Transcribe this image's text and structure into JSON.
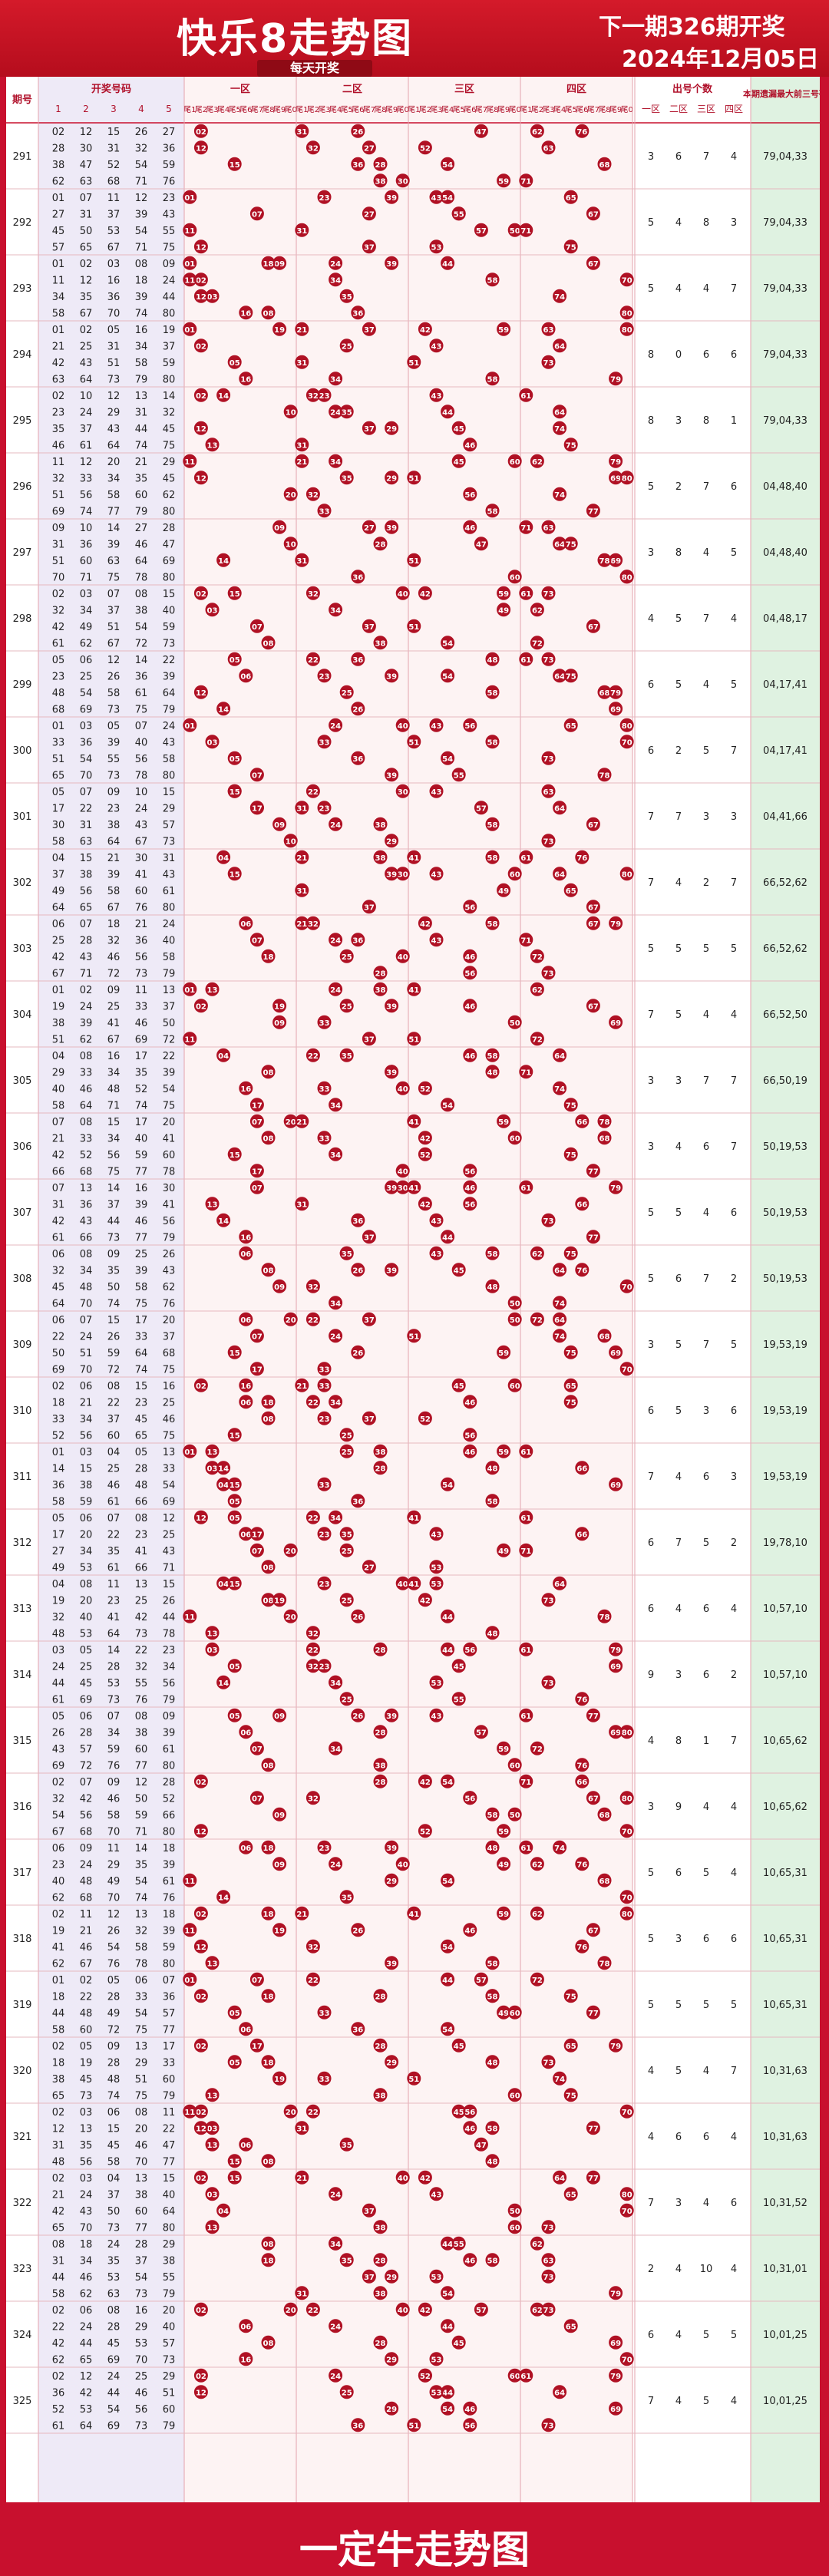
{
  "header": {
    "title": "快乐8走势图",
    "subtitle": "每天开奖",
    "next_draw": "下一期326期开奖",
    "next_date": "2024年12月05日"
  },
  "footer": {
    "text": "一定牛走势图"
  },
  "table": {
    "col_issue": "期号",
    "col_winning": "开奖号码",
    "winning_cols": [
      "1",
      "2",
      "3",
      "4",
      "5"
    ],
    "zones": [
      "一区",
      "二区",
      "三区",
      "四区"
    ],
    "tails": [
      "尾1",
      "尾2",
      "尾3",
      "尾4",
      "尾5",
      "尾6",
      "尾7",
      "尾8",
      "尾9",
      "尾0"
    ],
    "col_count": "出号个数",
    "count_zones": [
      "一区",
      "二区",
      "三区",
      "四区"
    ],
    "col_missing": "本期遗漏最大前三号码"
  },
  "chart_data": {
    "type": "table",
    "rows": [
      {
        "issue": "291",
        "numbers": [
          2,
          12,
          15,
          26,
          27,
          28,
          30,
          31,
          32,
          36,
          38,
          47,
          52,
          54,
          59,
          62,
          63,
          68,
          71,
          76
        ],
        "counts": [
          3,
          6,
          7,
          4
        ],
        "missing": "79,04,33"
      },
      {
        "issue": "292",
        "numbers": [
          1,
          7,
          11,
          12,
          23,
          27,
          31,
          37,
          39,
          43,
          45,
          50,
          53,
          54,
          55,
          57,
          65,
          67,
          71,
          75
        ],
        "counts": [
          5,
          4,
          8,
          3
        ],
        "missing": "79,04,33"
      },
      {
        "issue": "293",
        "numbers": [
          1,
          2,
          3,
          8,
          9,
          11,
          12,
          16,
          18,
          24,
          34,
          35,
          36,
          39,
          44,
          58,
          67,
          70,
          74,
          80
        ],
        "counts": [
          5,
          4,
          4,
          7
        ],
        "missing": "79,04,33"
      },
      {
        "issue": "294",
        "numbers": [
          1,
          2,
          5,
          16,
          19,
          21,
          25,
          31,
          34,
          37,
          42,
          43,
          51,
          63,
          73,
          58,
          59,
          64,
          79,
          80
        ],
        "counts": [
          8,
          0,
          6,
          6
        ],
        "missing": "79,04,33"
      },
      {
        "issue": "295",
        "numbers": [
          2,
          10,
          12,
          13,
          14,
          23,
          24,
          29,
          31,
          32,
          35,
          37,
          43,
          44,
          45,
          46,
          61,
          64,
          74,
          75
        ],
        "counts": [
          8,
          3,
          8,
          1
        ],
        "missing": "79,04,33"
      },
      {
        "issue": "296",
        "numbers": [
          11,
          12,
          20,
          21,
          29,
          32,
          33,
          34,
          35,
          45,
          51,
          56,
          58,
          60,
          62,
          69,
          74,
          77,
          79,
          80
        ],
        "counts": [
          5,
          2,
          7,
          6
        ],
        "missing": "04,48,40"
      },
      {
        "issue": "297",
        "numbers": [
          9,
          10,
          14,
          27,
          28,
          31,
          36,
          39,
          46,
          47,
          51,
          60,
          63,
          64,
          69,
          70,
          71,
          75,
          78,
          80
        ],
        "counts": [
          3,
          8,
          4,
          5
        ],
        "missing": "04,48,40"
      },
      {
        "issue": "298",
        "numbers": [
          2,
          3,
          7,
          8,
          15,
          32,
          34,
          37,
          38,
          40,
          42,
          49,
          51,
          54,
          59,
          61,
          62,
          67,
          72,
          73
        ],
        "counts": [
          4,
          5,
          7,
          4
        ],
        "missing": "04,48,17"
      },
      {
        "issue": "299",
        "numbers": [
          5,
          6,
          12,
          14,
          22,
          23,
          25,
          26,
          36,
          39,
          48,
          54,
          58,
          61,
          64,
          68,
          69,
          73,
          75,
          79
        ],
        "counts": [
          6,
          5,
          4,
          5
        ],
        "missing": "04,17,41"
      },
      {
        "issue": "300",
        "numbers": [
          1,
          3,
          5,
          7,
          24,
          33,
          36,
          39,
          40,
          43,
          51,
          54,
          55,
          56,
          58,
          65,
          70,
          73,
          78,
          80
        ],
        "counts": [
          6,
          2,
          5,
          7
        ],
        "missing": "04,17,41"
      },
      {
        "issue": "301",
        "numbers": [
          5,
          7,
          9,
          10,
          15,
          17,
          22,
          23,
          24,
          29,
          30,
          31,
          38,
          43,
          57,
          58,
          63,
          64,
          67,
          73
        ],
        "counts": [
          7,
          7,
          3,
          3
        ],
        "missing": "04,41,66"
      },
      {
        "issue": "302",
        "numbers": [
          4,
          15,
          21,
          30,
          31,
          37,
          38,
          39,
          41,
          43,
          49,
          56,
          58,
          60,
          61,
          64,
          65,
          67,
          76,
          80
        ],
        "counts": [
          7,
          4,
          2,
          7
        ],
        "missing": "66,52,62"
      },
      {
        "issue": "303",
        "numbers": [
          6,
          7,
          18,
          21,
          24,
          25,
          28,
          32,
          36,
          40,
          42,
          43,
          46,
          56,
          58,
          67,
          71,
          72,
          73,
          79
        ],
        "counts": [
          5,
          5,
          5,
          5
        ],
        "missing": "66,52,62"
      },
      {
        "issue": "304",
        "numbers": [
          1,
          2,
          9,
          11,
          13,
          19,
          24,
          25,
          33,
          37,
          38,
          39,
          41,
          46,
          50,
          51,
          62,
          67,
          69,
          72
        ],
        "counts": [
          7,
          5,
          4,
          4
        ],
        "missing": "66,52,50"
      },
      {
        "issue": "305",
        "numbers": [
          4,
          8,
          16,
          17,
          22,
          29,
          33,
          34,
          35,
          39,
          40,
          46,
          48,
          52,
          54,
          58,
          64,
          71,
          74,
          75
        ],
        "counts": [
          3,
          3,
          7,
          7
        ],
        "missing": "66,50,19"
      },
      {
        "issue": "306",
        "numbers": [
          7,
          8,
          15,
          17,
          20,
          21,
          33,
          34,
          40,
          41,
          42,
          52,
          56,
          59,
          60,
          66,
          68,
          75,
          77,
          78
        ],
        "counts": [
          3,
          4,
          6,
          7
        ],
        "missing": "50,19,53"
      },
      {
        "issue": "307",
        "numbers": [
          7,
          13,
          14,
          16,
          30,
          31,
          36,
          37,
          39,
          41,
          42,
          43,
          44,
          46,
          56,
          61,
          66,
          73,
          77,
          79
        ],
        "counts": [
          5,
          5,
          4,
          6
        ],
        "missing": "50,19,53"
      },
      {
        "issue": "308",
        "numbers": [
          6,
          8,
          9,
          25,
          26,
          32,
          34,
          35,
          39,
          43,
          45,
          48,
          50,
          58,
          62,
          64,
          70,
          74,
          75,
          76
        ],
        "counts": [
          5,
          6,
          7,
          2
        ],
        "missing": "50,19,53"
      },
      {
        "issue": "309",
        "numbers": [
          6,
          7,
          15,
          17,
          20,
          22,
          24,
          26,
          33,
          37,
          50,
          51,
          59,
          64,
          68,
          69,
          70,
          72,
          74,
          75
        ],
        "counts": [
          3,
          5,
          7,
          5
        ],
        "missing": "19,53,19"
      },
      {
        "issue": "310",
        "numbers": [
          2,
          6,
          8,
          15,
          16,
          18,
          21,
          22,
          23,
          25,
          33,
          34,
          37,
          45,
          46,
          52,
          56,
          60,
          65,
          75
        ],
        "counts": [
          6,
          5,
          3,
          6
        ],
        "missing": "19,53,19"
      },
      {
        "issue": "311",
        "numbers": [
          1,
          3,
          4,
          5,
          13,
          14,
          15,
          25,
          28,
          33,
          36,
          38,
          46,
          48,
          54,
          58,
          59,
          61,
          66,
          69
        ],
        "counts": [
          7,
          4,
          6,
          3
        ],
        "missing": "19,53,19"
      },
      {
        "issue": "312",
        "numbers": [
          5,
          6,
          7,
          8,
          12,
          17,
          20,
          22,
          23,
          25,
          27,
          34,
          35,
          41,
          43,
          49,
          53,
          61,
          66,
          71
        ],
        "counts": [
          6,
          7,
          5,
          2
        ],
        "missing": "19,78,10"
      },
      {
        "issue": "313",
        "numbers": [
          4,
          8,
          11,
          13,
          15,
          19,
          20,
          23,
          25,
          26,
          32,
          40,
          41,
          42,
          44,
          48,
          53,
          64,
          73,
          78
        ],
        "counts": [
          6,
          4,
          6,
          4
        ],
        "missing": "10,57,10"
      },
      {
        "issue": "314",
        "numbers": [
          3,
          5,
          14,
          22,
          23,
          24,
          25,
          28,
          32,
          34,
          44,
          45,
          53,
          55,
          56,
          61,
          69,
          73,
          76,
          79
        ],
        "counts": [
          9,
          3,
          6,
          2
        ],
        "missing": "10,57,10"
      },
      {
        "issue": "315",
        "numbers": [
          5,
          6,
          7,
          8,
          9,
          26,
          28,
          34,
          38,
          39,
          43,
          57,
          59,
          60,
          61,
          69,
          72,
          76,
          77,
          80
        ],
        "counts": [
          4,
          8,
          1,
          7
        ],
        "missing": "10,65,62"
      },
      {
        "issue": "316",
        "numbers": [
          2,
          7,
          9,
          12,
          28,
          32,
          42,
          46,
          50,
          52,
          54,
          56,
          58,
          59,
          66,
          67,
          68,
          70,
          71,
          80
        ],
        "counts": [
          3,
          9,
          4,
          4
        ],
        "missing": "10,65,62"
      },
      {
        "issue": "317",
        "numbers": [
          6,
          9,
          11,
          14,
          18,
          23,
          24,
          29,
          35,
          39,
          40,
          48,
          49,
          54,
          61,
          62,
          68,
          70,
          74,
          76
        ],
        "counts": [
          5,
          6,
          5,
          4
        ],
        "missing": "10,65,31"
      },
      {
        "issue": "318",
        "numbers": [
          2,
          11,
          12,
          13,
          18,
          19,
          21,
          26,
          32,
          39,
          41,
          46,
          54,
          58,
          59,
          62,
          67,
          76,
          78,
          80
        ],
        "counts": [
          5,
          3,
          6,
          6
        ],
        "missing": "10,65,31"
      },
      {
        "issue": "319",
        "numbers": [
          1,
          2,
          5,
          6,
          7,
          18,
          22,
          28,
          33,
          36,
          44,
          48,
          49,
          54,
          57,
          58,
          60,
          72,
          75,
          77
        ],
        "counts": [
          5,
          5,
          5,
          5
        ],
        "missing": "10,65,31"
      },
      {
        "issue": "320",
        "numbers": [
          2,
          5,
          9,
          13,
          17,
          18,
          19,
          28,
          29,
          38,
          48,
          51,
          60,
          65,
          73,
          74,
          75,
          79,
          33,
          45
        ],
        "counts": [
          4,
          5,
          4,
          7
        ],
        "missing": "10,31,63"
      },
      {
        "issue": "321",
        "numbers": [
          2,
          3,
          6,
          8,
          11,
          12,
          13,
          15,
          20,
          22,
          31,
          35,
          45,
          46,
          47,
          48,
          56,
          58,
          70,
          77
        ],
        "counts": [
          4,
          6,
          6,
          4
        ],
        "missing": "10,31,63"
      },
      {
        "issue": "322",
        "numbers": [
          2,
          3,
          4,
          13,
          15,
          21,
          24,
          37,
          38,
          40,
          42,
          43,
          50,
          60,
          64,
          65,
          70,
          73,
          77,
          80
        ],
        "counts": [
          7,
          3,
          4,
          6
        ],
        "missing": "10,31,52"
      },
      {
        "issue": "323",
        "numbers": [
          8,
          18,
          24,
          28,
          29,
          31,
          34,
          35,
          37,
          38,
          44,
          46,
          53,
          54,
          55,
          58,
          62,
          63,
          73,
          79
        ],
        "counts": [
          2,
          4,
          10,
          4
        ],
        "missing": "10,31,01"
      },
      {
        "issue": "324",
        "numbers": [
          2,
          6,
          8,
          16,
          20,
          22,
          24,
          28,
          29,
          40,
          42,
          44,
          45,
          53,
          57,
          62,
          65,
          69,
          70,
          73
        ],
        "counts": [
          6,
          4,
          5,
          5
        ],
        "missing": "10,01,25"
      },
      {
        "issue": "325",
        "numbers": [
          2,
          12,
          24,
          25,
          29,
          36,
          42,
          44,
          46,
          51,
          52,
          53,
          54,
          56,
          60,
          61,
          64,
          69,
          73,
          79
        ],
        "counts": [
          7,
          4,
          5,
          4
        ],
        "missing": "10,01,25"
      }
    ]
  }
}
